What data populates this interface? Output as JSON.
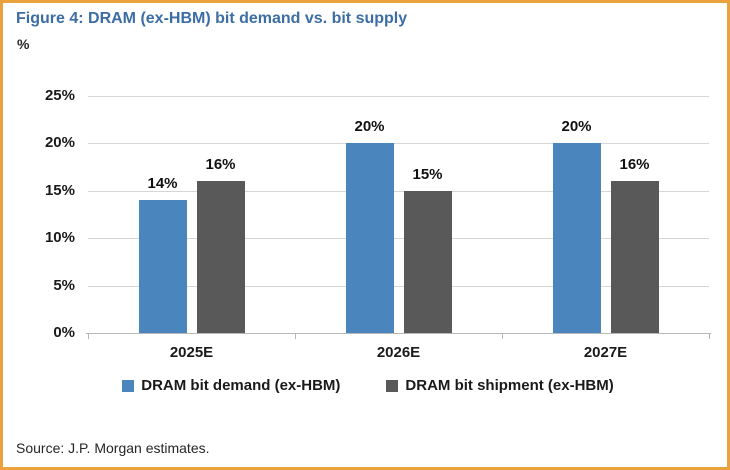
{
  "figure": {
    "title": "Figure 4: DRAM (ex-HBM) bit demand vs. bit supply",
    "unit_label": "%",
    "source": "Source: J.P. Morgan estimates."
  },
  "colors": {
    "accent_border": "#E9A23C",
    "title_blue": "#3C6EA5",
    "demand_blue": "#4A86BD",
    "shipment_gray": "#595959",
    "gridline": "#D6D6D6",
    "axis": "#B7B7B7"
  },
  "chart_data": {
    "type": "bar",
    "title": "Figure 4: DRAM (ex-HBM) bit demand vs. bit supply",
    "ylabel": "%",
    "categories": [
      "2025E",
      "2026E",
      "2027E"
    ],
    "series": [
      {
        "name": "DRAM bit demand (ex-HBM)",
        "values": [
          14,
          20,
          20
        ],
        "color": "#4A86BD"
      },
      {
        "name": "DRAM bit shipment (ex-HBM)",
        "values": [
          16,
          15,
          16
        ],
        "color": "#595959"
      }
    ],
    "data_labels": [
      [
        "14%",
        "20%",
        "20%"
      ],
      [
        "16%",
        "15%",
        "16%"
      ]
    ],
    "yticks": [
      "0%",
      "5%",
      "10%",
      "15%",
      "20%",
      "25%"
    ],
    "ytick_step": 5,
    "ylim": [
      0,
      25
    ],
    "grid": true,
    "legend_position": "bottom"
  }
}
